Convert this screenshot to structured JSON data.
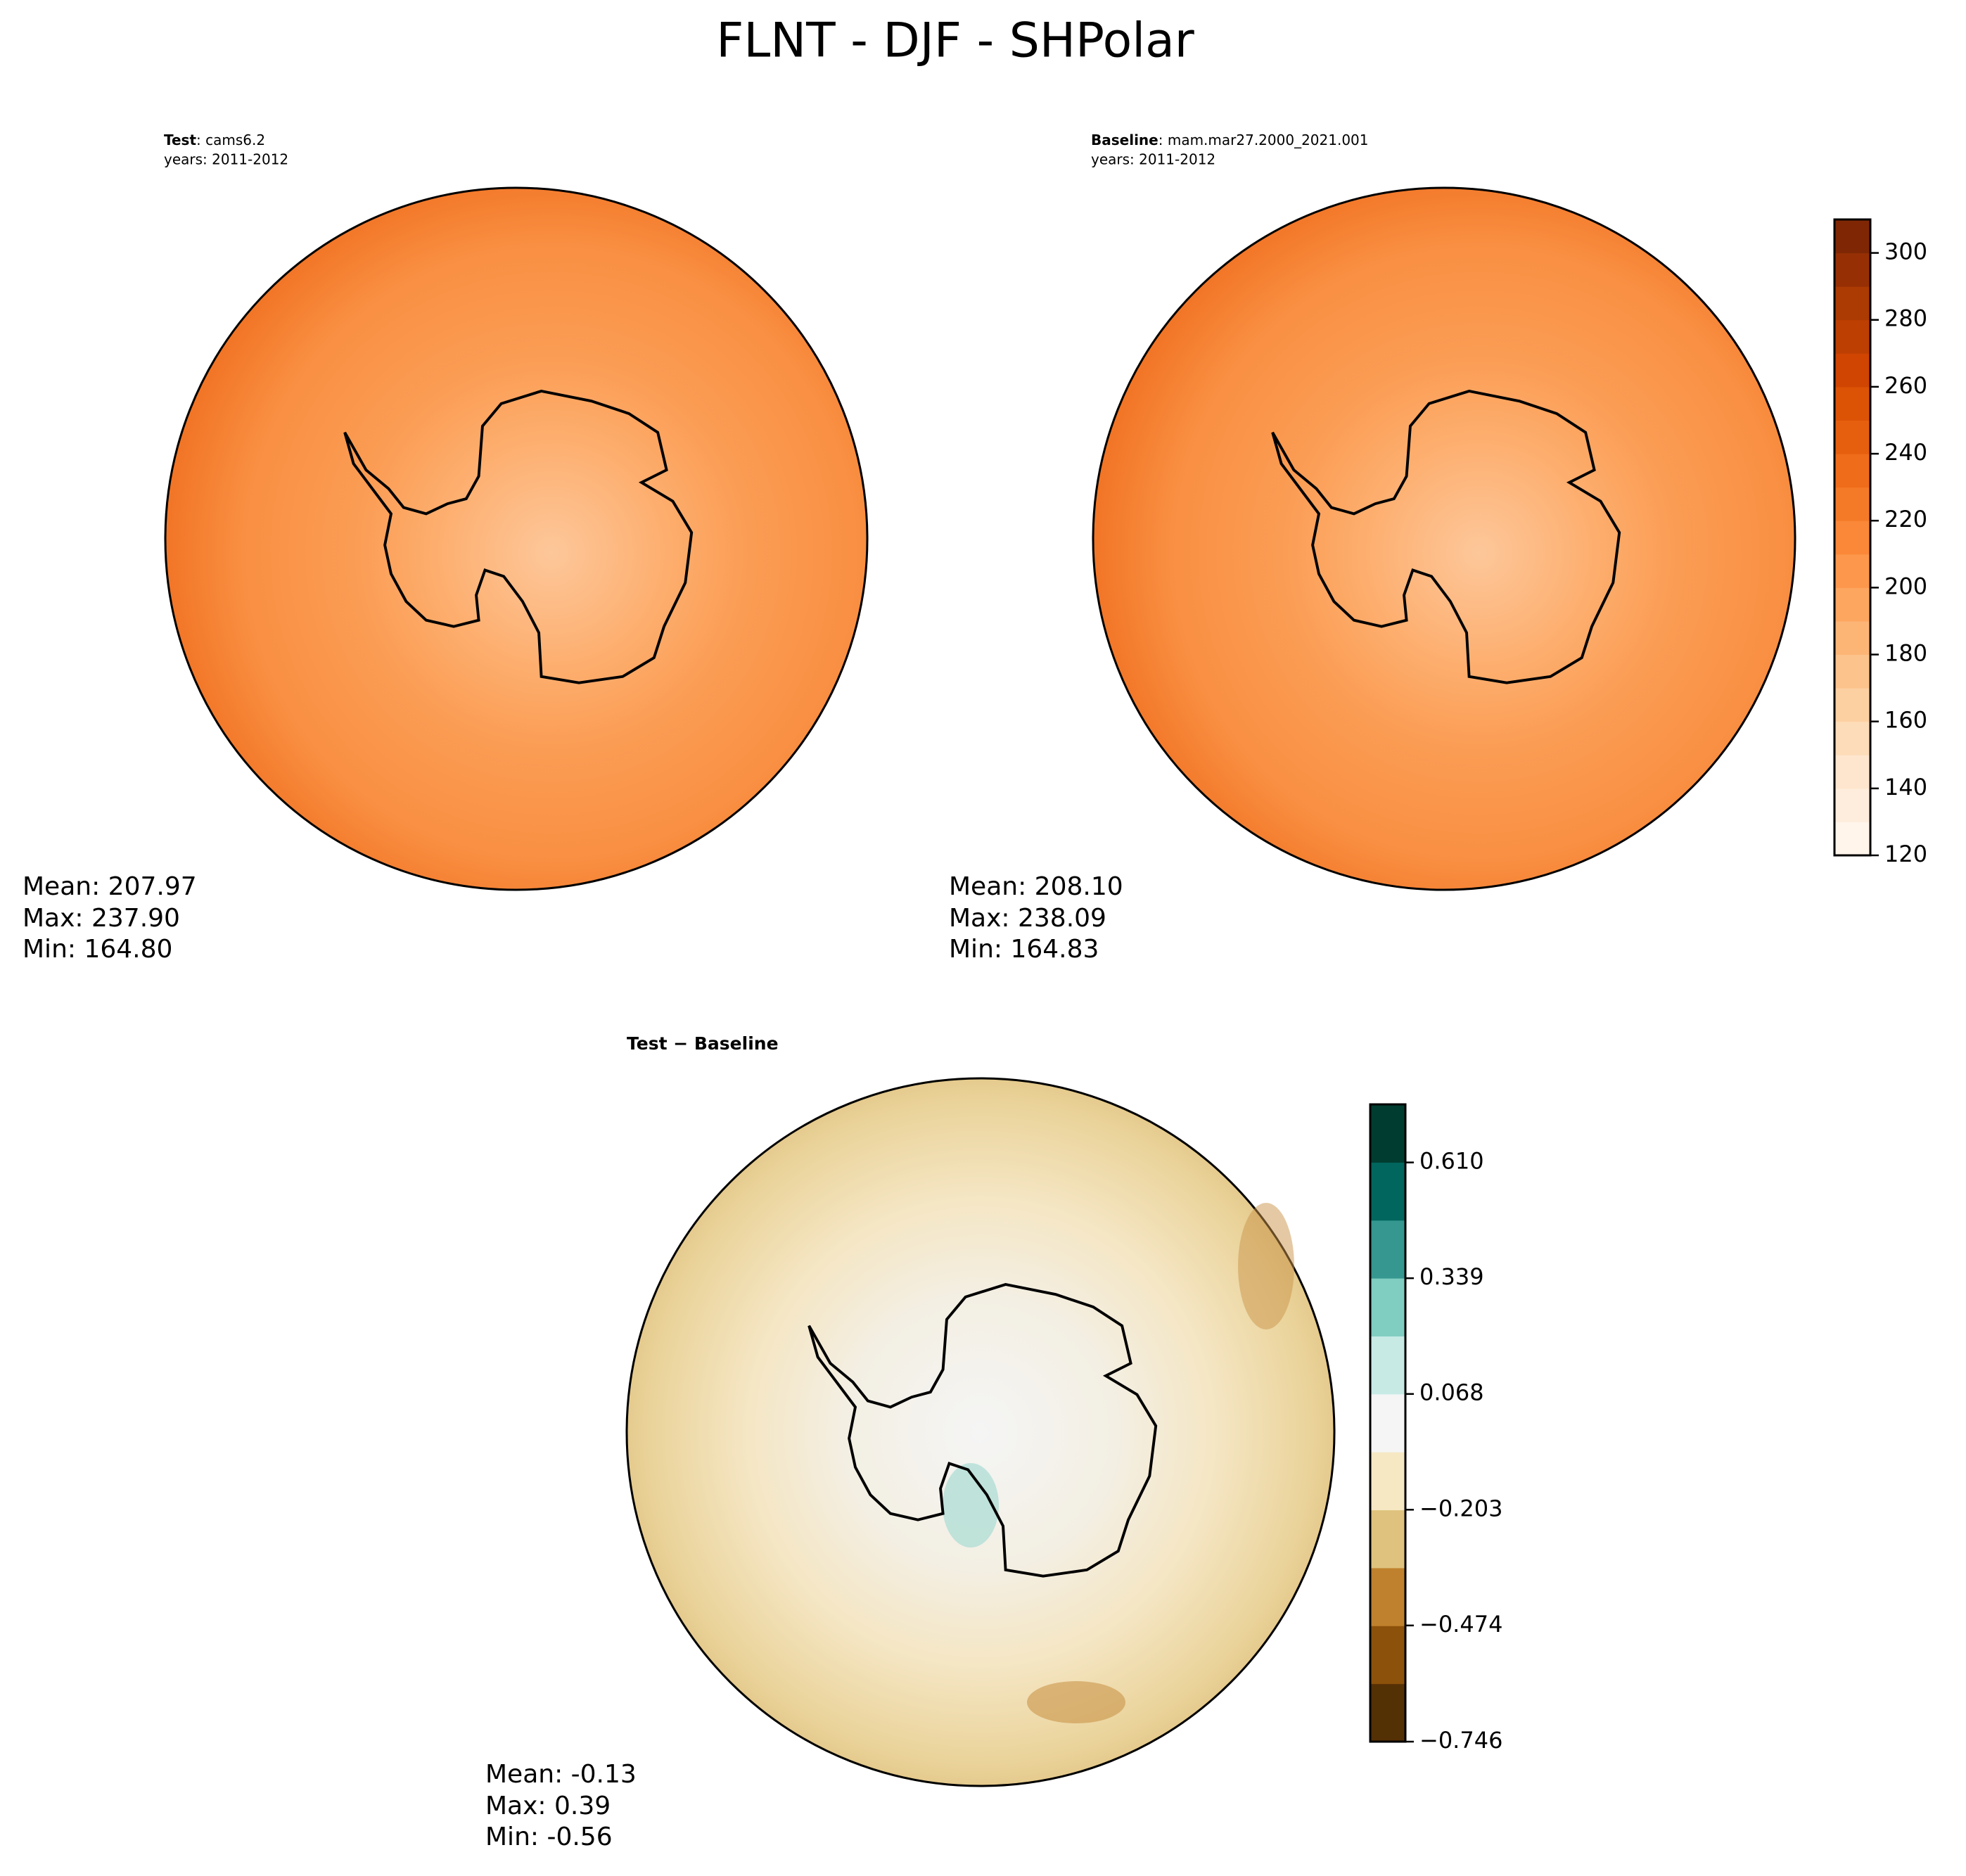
{
  "title": "FLNT - DJF - SHPolar",
  "panels": [
    {
      "label_bold": "Test",
      "label": ": cams6.2",
      "years": "years: 2011-2012",
      "stats": [
        "Mean: 207.97",
        "Max: 237.90",
        "Min: 164.80"
      ]
    },
    {
      "label_bold": "Baseline",
      "label": ": mam.mar27.2000_2021.001",
      "years": "years: 2011-2012",
      "stats": [
        "Mean: 208.10",
        "Max: 238.09",
        "Min: 164.83"
      ]
    },
    {
      "label_bold": "Test − Baseline",
      "stats": [
        "Mean: -0.13",
        "Max:  0.39",
        "Min: -0.56"
      ]
    }
  ],
  "colorbars": [
    {
      "lim": [
        120,
        310
      ],
      "ticks": [
        120,
        140,
        160,
        180,
        200,
        220,
        240,
        260,
        280,
        300
      ],
      "colors": [
        "#fff5eb",
        "#feeddc",
        "#fee6ce",
        "#fddcb9",
        "#fdd0a2",
        "#fdc38c",
        "#fdb576",
        "#fda660",
        "#fd974c",
        "#fa8838",
        "#f57a28",
        "#ef6c1a",
        "#e65f0e",
        "#dc5306",
        "#d04501",
        "#be3f02",
        "#ac3a03",
        "#963004",
        "#7f2704"
      ]
    },
    {
      "lim": [
        -0.746,
        0.746
      ],
      "ticks": [
        {
          "value": -0.746,
          "label": "−0.746"
        },
        {
          "value": -0.474,
          "label": "−0.474"
        },
        {
          "value": -0.203,
          "label": "−0.203"
        },
        0.068,
        0.339,
        {
          "value": 0.61,
          "label": "0.610"
        }
      ],
      "colors": [
        "#543005",
        "#8c510a",
        "#bf812d",
        "#dfc27d",
        "#f6e8c3",
        "#f5f5f5",
        "#c7eae5",
        "#80cdc1",
        "#35978f",
        "#01665e",
        "#003c30"
      ]
    }
  ]
}
